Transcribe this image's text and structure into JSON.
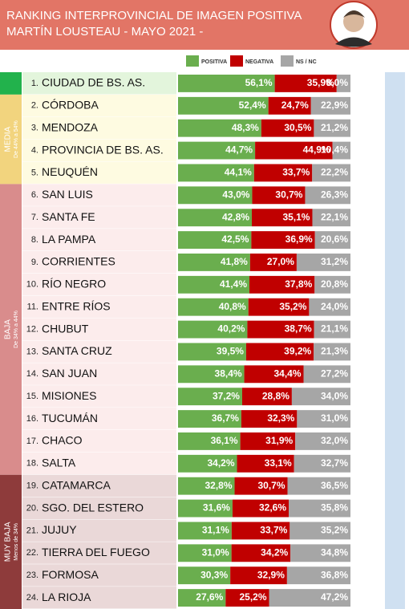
{
  "chart_data": {
    "type": "stacked-bar",
    "title": "RANKING INTERPROVINCIAL DE IMAGEN POSITIVA",
    "subtitle": "MARTÍN LOUSTEAU - MAYO 2021 -",
    "ranks": [
      "1.",
      "2.",
      "3.",
      "4.",
      "5.",
      "6.",
      "7.",
      "8.",
      "9.",
      "10.",
      "11.",
      "12.",
      "13.",
      "14.",
      "15.",
      "16.",
      "17.",
      "18.",
      "19.",
      "20.",
      "21.",
      "22.",
      "23.",
      "24."
    ],
    "categories": [
      "CIUDAD DE BS. AS.",
      "CÓRDOBA",
      "MENDOZA",
      "PROVINCIA DE BS. AS.",
      "NEUQUÉN",
      "SAN LUIS",
      "SANTA FE",
      "LA PAMPA",
      "CORRIENTES",
      "RÍO NEGRO",
      "ENTRE RÍOS",
      "CHUBUT",
      "SANTA CRUZ",
      "SAN JUAN",
      "MISIONES",
      "TUCUMÁN",
      "CHACO",
      "SALTA",
      "CATAMARCA",
      "SGO. DEL ESTERO",
      "JUJUY",
      "TIERRA DEL FUEGO",
      "FORMOSA",
      "LA RIOJA"
    ],
    "series": [
      {
        "name": "POSITIVA",
        "color": "#6aae4e",
        "values": [
          56.1,
          52.4,
          48.3,
          44.7,
          44.1,
          43.0,
          42.8,
          42.5,
          41.8,
          41.4,
          40.8,
          40.2,
          39.5,
          38.4,
          37.2,
          36.7,
          36.1,
          34.2,
          32.8,
          31.6,
          31.1,
          31.0,
          30.3,
          27.6
        ],
        "value_labels": [
          "56,1%",
          "52,4%",
          "48,3%",
          "44,7%",
          "44,1%",
          "43,0%",
          "42,8%",
          "42,5%",
          "41,8%",
          "41,4%",
          "40,8%",
          "40,2%",
          "39,5%",
          "38,4%",
          "37,2%",
          "36,7%",
          "36,1%",
          "34,2%",
          "32,8%",
          "31,6%",
          "31,1%",
          "31,0%",
          "30,3%",
          "27,6%"
        ]
      },
      {
        "name": "NEGATIVA",
        "color": "#c00000",
        "values": [
          35.9,
          24.7,
          30.5,
          44.9,
          33.7,
          30.7,
          35.1,
          36.9,
          27.0,
          37.8,
          35.2,
          38.7,
          39.2,
          34.4,
          28.8,
          32.3,
          31.9,
          33.1,
          30.7,
          32.6,
          33.7,
          34.2,
          32.9,
          25.2
        ],
        "value_labels": [
          "35,9%",
          "24,7%",
          "30,5%",
          "44,9%",
          "33,7%",
          "30,7%",
          "35,1%",
          "36,9%",
          "27,0%",
          "37,8%",
          "35,2%",
          "38,7%",
          "39,2%",
          "34,4%",
          "28,8%",
          "32,3%",
          "31,9%",
          "33,1%",
          "30,7%",
          "32,6%",
          "33,7%",
          "34,2%",
          "32,9%",
          "25,2%"
        ]
      },
      {
        "name": "NS / NC",
        "color": "#a6a6a6",
        "values": [
          8.0,
          22.9,
          21.2,
          10.4,
          22.2,
          26.3,
          22.1,
          20.6,
          31.2,
          20.8,
          24.0,
          21.1,
          21.3,
          27.2,
          34.0,
          31.0,
          32.0,
          32.7,
          36.5,
          35.8,
          35.2,
          34.8,
          36.8,
          47.2
        ],
        "value_labels": [
          "8,0%",
          "22,9%",
          "21,2%",
          "10,4%",
          "22,2%",
          "26,3%",
          "22,1%",
          "20,6%",
          "31,2%",
          "20,8%",
          "24,0%",
          "21,1%",
          "21,3%",
          "27,2%",
          "34,0%",
          "31,0%",
          "32,0%",
          "32,7%",
          "36,5%",
          "35,8%",
          "35,2%",
          "34,8%",
          "36,8%",
          "47,2%"
        ]
      }
    ],
    "groups": [
      {
        "min": 54,
        "color": "#22b24c",
        "bg": "#e3f5dc"
      },
      {
        "label": "MEDIA",
        "note": "De 44% a 54%",
        "min": 44,
        "max": 54,
        "color": "#f2d47e",
        "bg": "#fefbe1"
      },
      {
        "label": "BAJA",
        "note": "De 34% a 44%",
        "min": 34,
        "max": 44,
        "color": "#d98c8c",
        "bg": "#fcecec"
      },
      {
        "label": "MUY BAJA",
        "note": "Menos de 34%",
        "max": 34,
        "color": "#8e3b3b",
        "bg": "#ead8d8"
      }
    ]
  }
}
